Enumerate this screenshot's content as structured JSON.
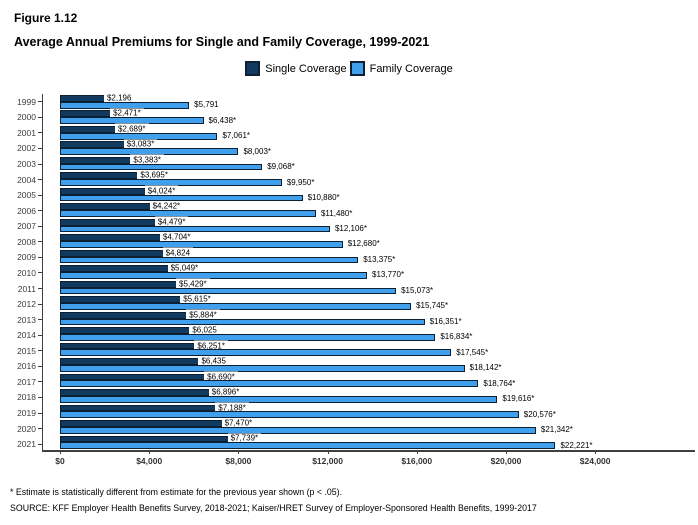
{
  "header": {
    "figure_label": "Figure 1.12",
    "title": "Average Annual Premiums for Single and Family Coverage, 1999-2021"
  },
  "footnotes": {
    "asterisk": "* Estimate is statistically different from estimate for the previous year shown (p < .05).",
    "source": "SOURCE: KFF Employer Health Benefits Survey, 2018-2021; Kaiser/HRET Survey of Employer-Sponsored Health Benefits, 1999-2017"
  },
  "chart_data": {
    "type": "bar",
    "orientation": "horizontal",
    "title": "Average Annual Premiums for Single and Family Coverage, 1999-2021",
    "figure_label": "Figure 1.12",
    "categories": [
      "1999",
      "2000",
      "2001",
      "2002",
      "2003",
      "2004",
      "2005",
      "2006",
      "2007",
      "2008",
      "2009",
      "2010",
      "2011",
      "2012",
      "2013",
      "2014",
      "2015",
      "2016",
      "2017",
      "2018",
      "2019",
      "2020",
      "2021"
    ],
    "series": [
      {
        "name": "Single Coverage",
        "color": "#12395E",
        "border": "#0B2133",
        "values": [
          2196,
          2471,
          2689,
          3083,
          3383,
          3695,
          4024,
          4242,
          4479,
          4704,
          4824,
          5049,
          5429,
          5615,
          5884,
          6025,
          6251,
          6435,
          6690,
          6896,
          7188,
          7470,
          7739
        ],
        "labels": [
          "$2,196",
          "$2,471*",
          "$2,689*",
          "$3,083*",
          "$3,383*",
          "$3,695*",
          "$4,024*",
          "$4,242*",
          "$4,479*",
          "$4,704*",
          "$4,824",
          "$5,049*",
          "$5,429*",
          "$5,615*",
          "$5,884*",
          "$6,025",
          "$6,251*",
          "$6,435",
          "$6,690*",
          "$6,896*",
          "$7,188*",
          "$7,470*",
          "$7,739*"
        ]
      },
      {
        "name": "Family Coverage",
        "color": "#41A0EE",
        "border": "#0B2133",
        "values": [
          5791,
          6438,
          7061,
          8003,
          9068,
          9950,
          10880,
          11480,
          12106,
          12680,
          13375,
          13770,
          15073,
          15745,
          16351,
          16834,
          17545,
          18142,
          18764,
          19616,
          20576,
          21342,
          22221
        ],
        "labels": [
          "$5,791",
          "$6,438*",
          "$7,061*",
          "$8,003*",
          "$9,068*",
          "$9,950*",
          "$10,880*",
          "$11,480*",
          "$12,106*",
          "$12,680*",
          "$13,375*",
          "$13,770*",
          "$15,073*",
          "$15,745*",
          "$16,351*",
          "$16,834*",
          "$17,545*",
          "$18,142*",
          "$18,764*",
          "$19,616*",
          "$20,576*",
          "$21,342*",
          "$22,221*"
        ],
        "value_label_note": "labels drawn outside bar end; single-series labels drawn on white boxes at bar end"
      }
    ],
    "x_ticks": [
      {
        "label": "$0",
        "value": 0
      },
      {
        "label": "$4,000",
        "value": 4000
      },
      {
        "label": "$8,000",
        "value": 8000
      },
      {
        "label": "$12,000",
        "value": 12000
      },
      {
        "label": "$16,000",
        "value": 16000
      },
      {
        "label": "$20,000",
        "value": 20000
      },
      {
        "label": "$24,000",
        "value": 24000
      }
    ],
    "xlim": [
      0,
      28478
    ],
    "xlabel": "",
    "ylabel": "",
    "grid": false,
    "legend_position": "top-center",
    "axis_color": "#3f3f3f"
  }
}
